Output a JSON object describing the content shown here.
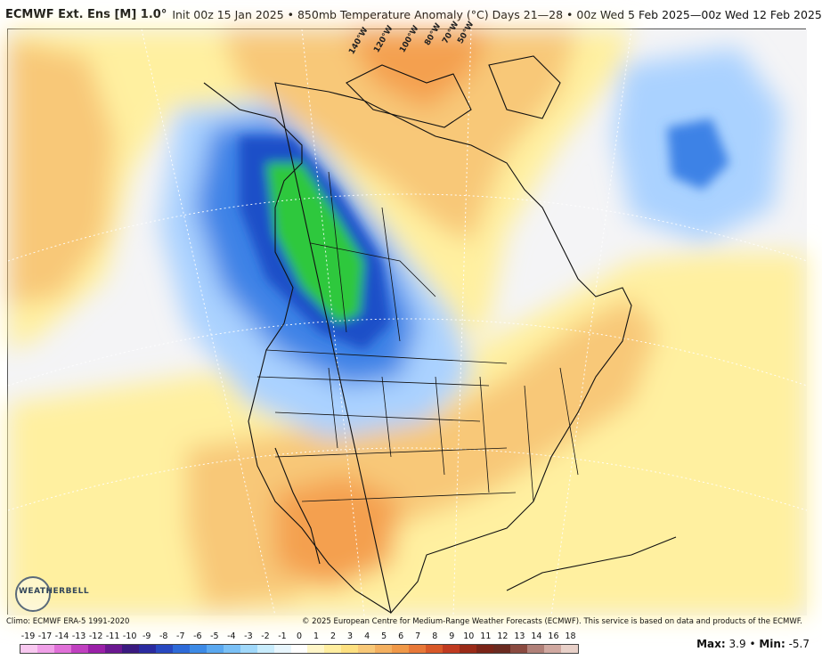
{
  "header": {
    "model": "ECMWF Ext. Ens [M] 1.0°",
    "details": "Init 00z 15 Jan 2025 • 850mb Temperature Anomaly (°C)   Days 21—28 • 00z Wed 5 Feb 2025—00z Wed 12 Feb 2025"
  },
  "map": {
    "longitude_labels": [
      "140°W",
      "120°W",
      "100°W",
      "80°W",
      "70°W",
      "50°W"
    ],
    "logo_text": "WEATHERBELL",
    "anomaly_colors": {
      "strong_cold": "#1e50c8",
      "extreme_cold": "#2ec83c",
      "moderate_cold": "#3c82e6",
      "weak_cold": "#aad2ff",
      "neutral": "#f4f4f6",
      "weak_warm": "#fff0a0",
      "moderate_warm": "#f8c878",
      "strong_warm": "#f4a050"
    }
  },
  "footer": {
    "climo": "Climo: ECMWF ERA-5 1991-2020",
    "copyright": "© 2025 European Centre for Medium-Range Weather Forecasts (ECMWF). This service is based on data and products of the ECMWF."
  },
  "colorbar": {
    "labels": [
      "-19",
      "-17",
      "-14",
      "-13",
      "-12",
      "-11",
      "-10",
      "-9",
      "-8",
      "-7",
      "-6",
      "-5",
      "-4",
      "-3",
      "-2",
      "-1",
      "0",
      "1",
      "2",
      "3",
      "4",
      "5",
      "6",
      "7",
      "8",
      "9",
      "10",
      "11",
      "12",
      "13",
      "14",
      "16",
      "18"
    ],
    "colors": [
      "#f8c8f0",
      "#f0a0e8",
      "#e070d8",
      "#c040c0",
      "#9a20a8",
      "#6a1890",
      "#3a1a80",
      "#2a2aa0",
      "#2848c0",
      "#2e6ad8",
      "#3c8ae6",
      "#5aa8f0",
      "#7ac0f6",
      "#a0d8fa",
      "#c8ecfc",
      "#e8f6fd",
      "#ffffff",
      "#fff6c8",
      "#ffeea0",
      "#fde080",
      "#f8c878",
      "#f4b060",
      "#f09848",
      "#e87838",
      "#d85828",
      "#c03a20",
      "#9a2a18",
      "#7a2418",
      "#6a2a20",
      "#8a4a40",
      "#b08078",
      "#d0a8a0",
      "#e8d0c8"
    ]
  },
  "stats": {
    "max_label": "Max:",
    "max_value": "3.9",
    "min_label": "Min:",
    "min_value": "-5.7"
  }
}
